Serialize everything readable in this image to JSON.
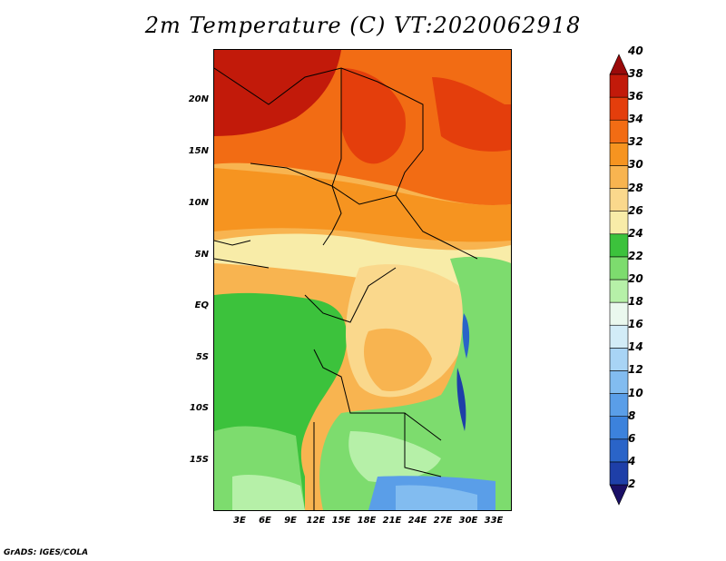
{
  "title": "2m Temperature (C) VT:2020062918",
  "credit": "GrADS: IGES/COLA",
  "lat_labels": [
    "20N",
    "15N",
    "10N",
    "5N",
    "EQ",
    "5S",
    "10S",
    "15S"
  ],
  "lon_labels": [
    "3E",
    "6E",
    "9E",
    "12E",
    "15E",
    "18E",
    "21E",
    "24E",
    "27E",
    "30E",
    "33E"
  ],
  "colorbar": {
    "labels": [
      "2",
      "4",
      "6",
      "8",
      "10",
      "12",
      "14",
      "16",
      "18",
      "20",
      "22",
      "24",
      "26",
      "28",
      "30",
      "32",
      "34",
      "36",
      "38",
      "40"
    ],
    "colors": [
      "#1a0f66",
      "#1e3fa8",
      "#2a64c8",
      "#3c82dc",
      "#5a9ee8",
      "#82bcf0",
      "#a8d4f5",
      "#d2ecf7",
      "#eaf8ee",
      "#b6f0a8",
      "#7ddc6e",
      "#3cc23c",
      "#f8eca8",
      "#fad88c",
      "#f8b450",
      "#f69420",
      "#f26c14",
      "#e43e0c",
      "#c21a0a",
      "#9a0a0a"
    ],
    "min": 2,
    "max": 40
  },
  "map": {
    "region": "Central Africa",
    "lat_range": [
      "19S",
      "24N"
    ],
    "lon_range": [
      "0E",
      "35E"
    ]
  }
}
